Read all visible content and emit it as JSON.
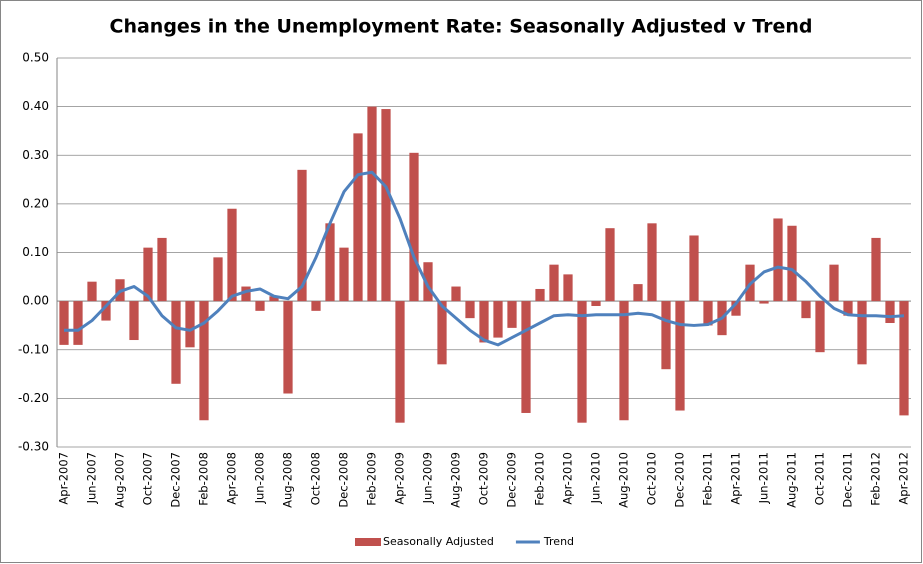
{
  "chart_data": {
    "type": "bar",
    "title": "Changes in the Unemployment Rate: Seasonally Adjusted v Trend",
    "categories": [
      "Apr-2007",
      null,
      "Jun-2007",
      null,
      "Aug-2007",
      null,
      "Oct-2007",
      null,
      "Dec-2007",
      null,
      "Feb-2008",
      null,
      "Apr-2008",
      null,
      "Jun-2008",
      null,
      "Aug-2008",
      null,
      "Oct-2008",
      null,
      "Dec-2008",
      null,
      "Feb-2009",
      null,
      "Apr-2009",
      null,
      "Jun-2009",
      null,
      "Aug-2009",
      null,
      "Oct-2009",
      null,
      "Dec-2009",
      null,
      "Feb-2010",
      null,
      "Apr-2010",
      null,
      "Jun-2010",
      null,
      "Aug-2010",
      null,
      "Oct-2010",
      null,
      "Dec-2010",
      null,
      "Feb-2011",
      null,
      "Apr-2011",
      null,
      "Jun-2011",
      null,
      "Aug-2011",
      null,
      "Oct-2011",
      null,
      "Dec-2011",
      null,
      "Feb-2012",
      null,
      "Apr-2012"
    ],
    "series": [
      {
        "name": "Seasonally Adjusted",
        "type": "bar",
        "color": "#c0504d",
        "values": [
          -0.09,
          -0.09,
          0.04,
          -0.04,
          0.045,
          -0.08,
          0.11,
          0.13,
          -0.17,
          -0.095,
          -0.245,
          0.09,
          0.19,
          0.03,
          -0.02,
          0.01,
          -0.19,
          0.27,
          -0.02,
          0.16,
          0.11,
          0.345,
          0.4,
          0.395,
          -0.25,
          0.305,
          0.08,
          -0.13,
          0.03,
          -0.035,
          -0.085,
          -0.075,
          -0.055,
          -0.23,
          0.025,
          0.075,
          0.055,
          -0.25,
          -0.01,
          0.15,
          -0.245,
          0.035,
          0.16,
          -0.14,
          -0.225,
          0.135,
          -0.05,
          -0.07,
          -0.03,
          0.075,
          -0.005,
          0.17,
          0.155,
          -0.035,
          -0.105,
          0.075,
          -0.03,
          -0.13,
          0.13,
          -0.045,
          -0.235
        ]
      },
      {
        "name": "Trend",
        "type": "line",
        "color": "#4f81bd",
        "values": [
          -0.06,
          -0.06,
          -0.04,
          -0.01,
          0.02,
          0.03,
          0.01,
          -0.03,
          -0.055,
          -0.06,
          -0.045,
          -0.02,
          0.01,
          0.02,
          0.025,
          0.01,
          0.005,
          0.03,
          0.09,
          0.16,
          0.225,
          0.26,
          0.265,
          0.235,
          0.17,
          0.09,
          0.03,
          -0.01,
          -0.035,
          -0.06,
          -0.08,
          -0.09,
          -0.075,
          -0.06,
          -0.045,
          -0.03,
          -0.028,
          -0.03,
          -0.028,
          -0.028,
          -0.028,
          -0.025,
          -0.028,
          -0.04,
          -0.048,
          -0.05,
          -0.048,
          -0.035,
          -0.005,
          0.035,
          0.06,
          0.07,
          0.065,
          0.04,
          0.01,
          -0.015,
          -0.028,
          -0.03,
          -0.03,
          -0.032,
          -0.03
        ]
      }
    ],
    "ylim": [
      -0.3,
      0.5
    ],
    "yticks": [
      {
        "value": 0.5,
        "label": "0.50"
      },
      {
        "value": 0.4,
        "label": "0.40"
      },
      {
        "value": 0.3,
        "label": "0.30"
      },
      {
        "value": 0.2,
        "label": "0.20"
      },
      {
        "value": 0.1,
        "label": "0.10"
      },
      {
        "value": 0,
        "label": "0.00"
      },
      {
        "value": -0.1,
        "label": "-0.10"
      },
      {
        "value": -0.2,
        "label": "-0.20"
      },
      {
        "value": -0.3,
        "label": "-0.30"
      }
    ],
    "grid": true,
    "legend": "bottom"
  }
}
